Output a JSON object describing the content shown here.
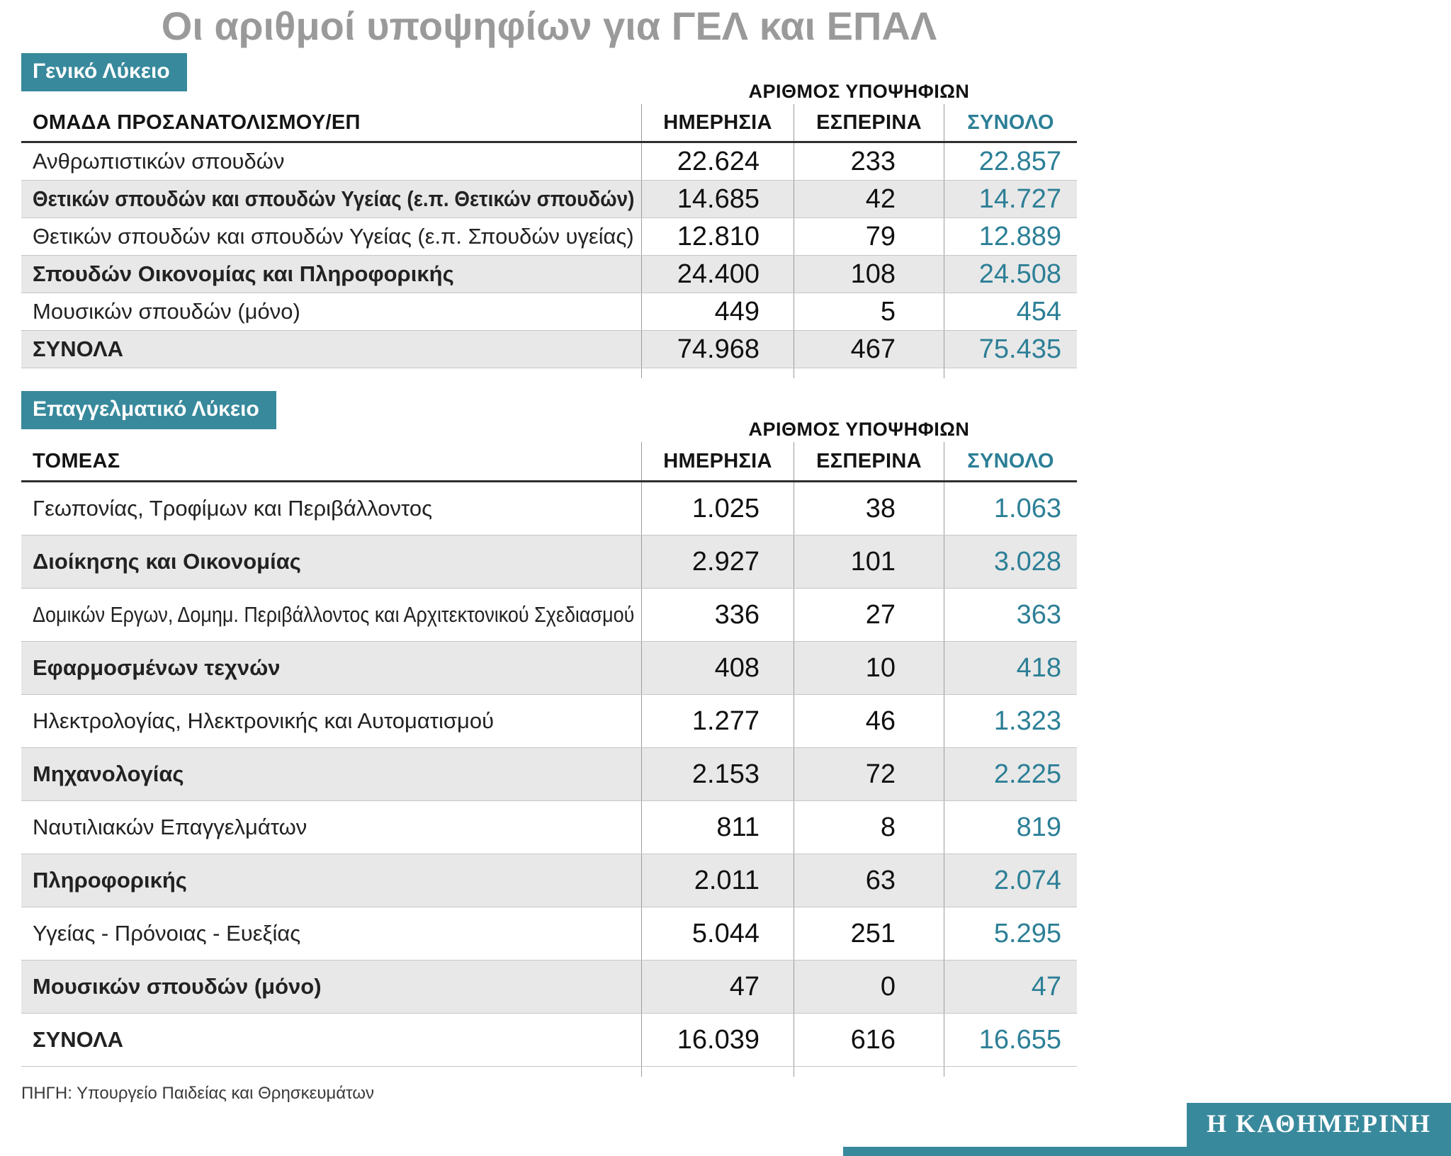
{
  "page": {
    "title": "Οι αριθμοί υποψηφίων για ΓΕΛ και ΕΠΑΛ",
    "source_note": "ΠΗΓΗ: Υπουργείο Παιδείας και Θρησκευμάτων",
    "brand": "Η ΚΑΘΗΜΕΡΙΝΗ"
  },
  "colors": {
    "teal": "#38899c",
    "teal_text": "#2c7f96",
    "title_gray": "#9a9a9a",
    "row_shade": "#e8e8e8"
  },
  "chart_data": [
    {
      "type": "table",
      "title": "Γενικό Λύκειο",
      "header_note": "ΑΡΙΘΜΟΣ ΥΠΟΨΗΦΙΩΝ",
      "columns": [
        "ΟΜΑΔΑ ΠΡΟΣΑΝΑΤΟΛΙΣΜΟΥ/ΕΠ",
        "ΗΜΕΡΗΣΙΑ",
        "ΕΣΠΕΡΙΝΑ",
        "ΣΥΝΟΛΟ"
      ],
      "rows": [
        {
          "label": "Ανθρωπιστικών σπουδών",
          "values": [
            "22.624",
            "233",
            "22.857"
          ],
          "shaded": false,
          "bold": false
        },
        {
          "label": "Θετικών σπουδών και σπουδών Υγείας (ε.π. Θετικών σπουδών)",
          "values": [
            "14.685",
            "42",
            "14.727"
          ],
          "shaded": true,
          "bold": true
        },
        {
          "label": "Θετικών σπουδών και σπουδών Υγείας (ε.π. Σπουδών υγείας)",
          "values": [
            "12.810",
            "79",
            "12.889"
          ],
          "shaded": false,
          "bold": false
        },
        {
          "label": "Σπουδών Οικονομίας και Πληροφορικής",
          "values": [
            "24.400",
            "108",
            "24.508"
          ],
          "shaded": true,
          "bold": true
        },
        {
          "label": "Μουσικών σπουδών (μόνο)",
          "values": [
            "449",
            "5",
            "454"
          ],
          "shaded": false,
          "bold": false
        },
        {
          "label": "ΣΥΝΟΛΑ",
          "values": [
            "74.968",
            "467",
            "75.435"
          ],
          "shaded": true,
          "bold": true
        }
      ]
    },
    {
      "type": "table",
      "title": "Επαγγελματικό Λύκειο",
      "header_note": "ΑΡΙΘΜΟΣ ΥΠΟΨΗΦΙΩΝ",
      "columns": [
        "ΤΟΜΕΑΣ",
        "ΗΜΕΡΗΣΙΑ",
        "ΕΣΠΕΡΙΝΑ",
        "ΣΥΝΟΛΟ"
      ],
      "rows": [
        {
          "label": "Γεωπονίας, Τροφίμων και Περιβάλλοντος",
          "values": [
            "1.025",
            "38",
            "1.063"
          ],
          "shaded": false,
          "bold": false
        },
        {
          "label": "Διοίκησης και Οικονομίας",
          "values": [
            "2.927",
            "101",
            "3.028"
          ],
          "shaded": true,
          "bold": true
        },
        {
          "label": "Δομικών Εργων, Δομημ. Περιβάλλοντος και Αρχιτεκτονικού Σχεδιασμού",
          "values": [
            "336",
            "27",
            "363"
          ],
          "shaded": false,
          "bold": false
        },
        {
          "label": "Εφαρμοσμένων τεχνών",
          "values": [
            "408",
            "10",
            "418"
          ],
          "shaded": true,
          "bold": true
        },
        {
          "label": "Ηλεκτρολογίας, Ηλεκτρονικής και Αυτοματισμού",
          "values": [
            "1.277",
            "46",
            "1.323"
          ],
          "shaded": false,
          "bold": false
        },
        {
          "label": "Μηχανολογίας",
          "values": [
            "2.153",
            "72",
            "2.225"
          ],
          "shaded": true,
          "bold": true
        },
        {
          "label": "Ναυτιλιακών Επαγγελμάτων",
          "values": [
            "811",
            "8",
            "819"
          ],
          "shaded": false,
          "bold": false
        },
        {
          "label": "Πληροφορικής",
          "values": [
            "2.011",
            "63",
            "2.074"
          ],
          "shaded": true,
          "bold": true
        },
        {
          "label": "Υγείας - Πρόνοιας - Ευεξίας",
          "values": [
            "5.044",
            "251",
            "5.295"
          ],
          "shaded": false,
          "bold": false
        },
        {
          "label": "Μουσικών σπουδών (μόνο)",
          "values": [
            "47",
            "0",
            "47"
          ],
          "shaded": true,
          "bold": true
        },
        {
          "label": "ΣΥΝΟΛΑ",
          "values": [
            "16.039",
            "616",
            "16.655"
          ],
          "shaded": false,
          "bold": true
        }
      ]
    }
  ]
}
